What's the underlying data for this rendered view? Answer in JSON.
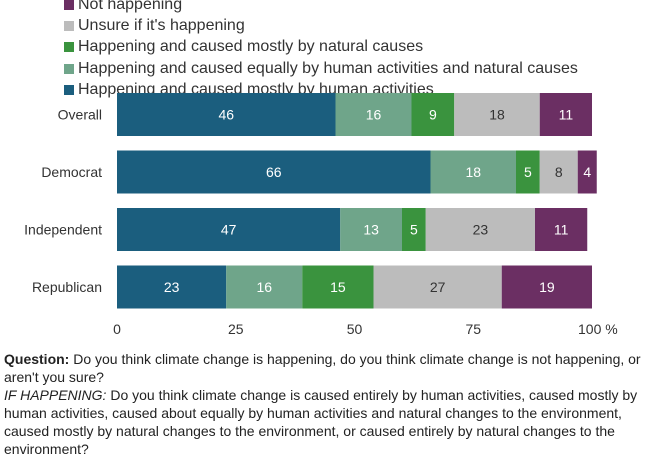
{
  "chart_data": {
    "type": "bar",
    "orientation": "horizontal",
    "stacked": true,
    "categories": [
      "Overall",
      "Democrat",
      "Independent",
      "Republican"
    ],
    "series": [
      {
        "name": "Happening and caused mostly by human activities",
        "color": "#1b5e7e",
        "values": [
          46,
          66,
          47,
          23
        ]
      },
      {
        "name": "Happening and caused equally by human activities and natural causes",
        "color": "#6fa58a",
        "values": [
          16,
          18,
          13,
          16
        ]
      },
      {
        "name": "Happening and caused mostly by natural causes",
        "color": "#3a933e",
        "values": [
          9,
          5,
          5,
          15
        ]
      },
      {
        "name": "Unsure if it's happening",
        "color": "#bcbcbc",
        "values": [
          18,
          8,
          23,
          27
        ]
      },
      {
        "name": "Not happening",
        "color": "#6b2f63",
        "values": [
          11,
          4,
          11,
          19
        ]
      }
    ],
    "xlim": [
      0,
      100
    ],
    "xticks": [
      "0",
      "25",
      "50",
      "75",
      "100 %"
    ],
    "grid": false,
    "legend_position": "top"
  },
  "notes": {
    "question_label": "Question:",
    "question_text": " Do you think climate change is happening, do you think climate change is not happening, or aren't you sure?",
    "conditional_label": "IF HAPPENING:",
    "conditional_text": " Do you think climate change is caused entirely by human activities, caused mostly by human activities, caused about equally by human activities and natural changes to the environment, caused mostly by natural changes to the environment, or caused entirely by natural changes to the environment?"
  }
}
